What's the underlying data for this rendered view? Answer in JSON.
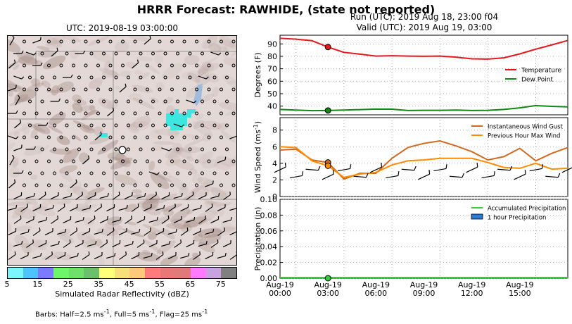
{
  "title": "HRRR Forecast: RAWHIDE, (state not reported)",
  "map": {
    "title": "UTC: 2019-08-19 03:00:00",
    "colorbar": {
      "label": "Simulated Radar Reflectivity (dBZ)",
      "ticks": [
        "5",
        "15",
        "25",
        "35",
        "45",
        "55",
        "65",
        "75"
      ],
      "colors": [
        "#7df5ff",
        "#4ec4ff",
        "#7b7bff",
        "#6ff56a",
        "#6fe06a",
        "#6bc06b",
        "#ffff7a",
        "#f7e07a",
        "#ffc87a",
        "#ff7a7a",
        "#e87878",
        "#e07a78",
        "#ff7aff",
        "#c8a3e0",
        "#808080"
      ]
    },
    "barb_note_prefix": "Barbs: Half=2.5 ms",
    "barb_note_1": "-1",
    "barb_note_2": ", Full=5 ms",
    "barb_note_3": "-1",
    "barb_note_4": ", Flag=25 ms",
    "barb_note_5": "-1"
  },
  "run": {
    "line1": "Run (UTC): 2019 Aug 18, 23:00 f04",
    "line2": "Valid (UTC): 2019 Aug 19, 03:00"
  },
  "chart_data": [
    {
      "type": "line",
      "ylabel": "Degrees (F)",
      "ylim": [
        33,
        97
      ],
      "yticks": [
        40,
        50,
        60,
        70,
        80,
        90
      ],
      "x_hours": [
        0,
        1,
        2,
        3,
        4,
        5,
        6,
        7,
        8,
        9,
        10,
        11,
        12,
        13,
        14,
        15,
        16,
        17,
        18
      ],
      "series": [
        {
          "name": "Temperature",
          "color": "#e31a1c",
          "values": [
            94.5,
            93.8,
            92.6,
            87.5,
            83.2,
            81.8,
            80.2,
            80.5,
            80.2,
            80.1,
            80.2,
            79.4,
            78.0,
            77.8,
            78.8,
            82.0,
            85.8,
            89.2,
            92.8
          ]
        },
        {
          "name": "Dew Point",
          "color": "#118811",
          "values": [
            37.3,
            36.8,
            36.3,
            36.5,
            36.8,
            37.2,
            37.6,
            37.5,
            36.5,
            36.6,
            36.6,
            36.8,
            36.5,
            36.6,
            37.3,
            38.6,
            40.4,
            39.8,
            39.4
          ]
        }
      ],
      "marker_hour": 3,
      "legend_position": "right"
    },
    {
      "type": "line",
      "ylabel": "Wind Speed (ms",
      "ylabel_sup": "-1",
      "ylabel_end": ")",
      "ylim": [
        0,
        9.5
      ],
      "yticks": [
        0,
        2,
        4,
        6,
        8
      ],
      "x_hours": [
        0,
        1,
        2,
        3,
        4,
        5,
        6,
        7,
        8,
        9,
        10,
        11,
        12,
        13,
        14,
        15,
        16,
        17,
        18
      ],
      "series": [
        {
          "name": "Instantaneous Wind Gust",
          "color": "#d2691e",
          "values": [
            5.6,
            5.7,
            4.4,
            4.1,
            2.1,
            2.8,
            2.8,
            4.6,
            5.9,
            6.4,
            6.7,
            6.1,
            5.4,
            4.4,
            4.8,
            5.8,
            4.3,
            5.2,
            5.9
          ]
        },
        {
          "name": "Previous Hour Max Wind",
          "color": "#ff8c00",
          "values": [
            6.0,
            5.9,
            4.3,
            3.7,
            2.3,
            2.7,
            2.9,
            3.8,
            4.3,
            4.4,
            4.6,
            4.6,
            4.6,
            4.1,
            3.5,
            3.4,
            4.0,
            3.3,
            3.4
          ]
        }
      ],
      "marker_hour": 3,
      "legend_position": "top-right"
    },
    {
      "type": "bar",
      "ylabel": "Precipitation (in)",
      "ylim": [
        0,
        0.1
      ],
      "yticks": [
        0.0,
        0.02,
        0.04,
        0.06,
        0.08,
        0.1
      ],
      "x_hours": [
        0,
        1,
        2,
        3,
        4,
        5,
        6,
        7,
        8,
        9,
        10,
        11,
        12,
        13,
        14,
        15,
        16,
        17,
        18
      ],
      "series": [
        {
          "name": "Accumulated Precipitation",
          "color": "#33cc33",
          "values": [
            0,
            0,
            0,
            0,
            0,
            0,
            0,
            0,
            0,
            0,
            0,
            0,
            0,
            0,
            0,
            0,
            0,
            0,
            0
          ]
        },
        {
          "name": "1 hour Precipitation",
          "color": "#2b7bd6",
          "values": [
            0,
            0,
            0,
            0,
            0,
            0,
            0,
            0,
            0,
            0,
            0,
            0,
            0,
            0,
            0,
            0,
            0,
            0,
            0
          ]
        }
      ],
      "marker_hour": 3,
      "legend_position": "top-right",
      "x_tick_labels": [
        {
          "hour": 1,
          "line1": "Aug-19",
          "line2": "00:00"
        },
        {
          "hour": 4,
          "line1": "Aug-19",
          "line2": "03:00"
        },
        {
          "hour": 7,
          "line1": "Aug-19",
          "line2": "06:00"
        },
        {
          "hour": 10,
          "line1": "Aug-19",
          "line2": "09:00"
        },
        {
          "hour": 13,
          "line1": "Aug-19",
          "line2": "12:00"
        },
        {
          "hour": 16,
          "line1": "Aug-19",
          "line2": "15:00"
        }
      ]
    }
  ]
}
